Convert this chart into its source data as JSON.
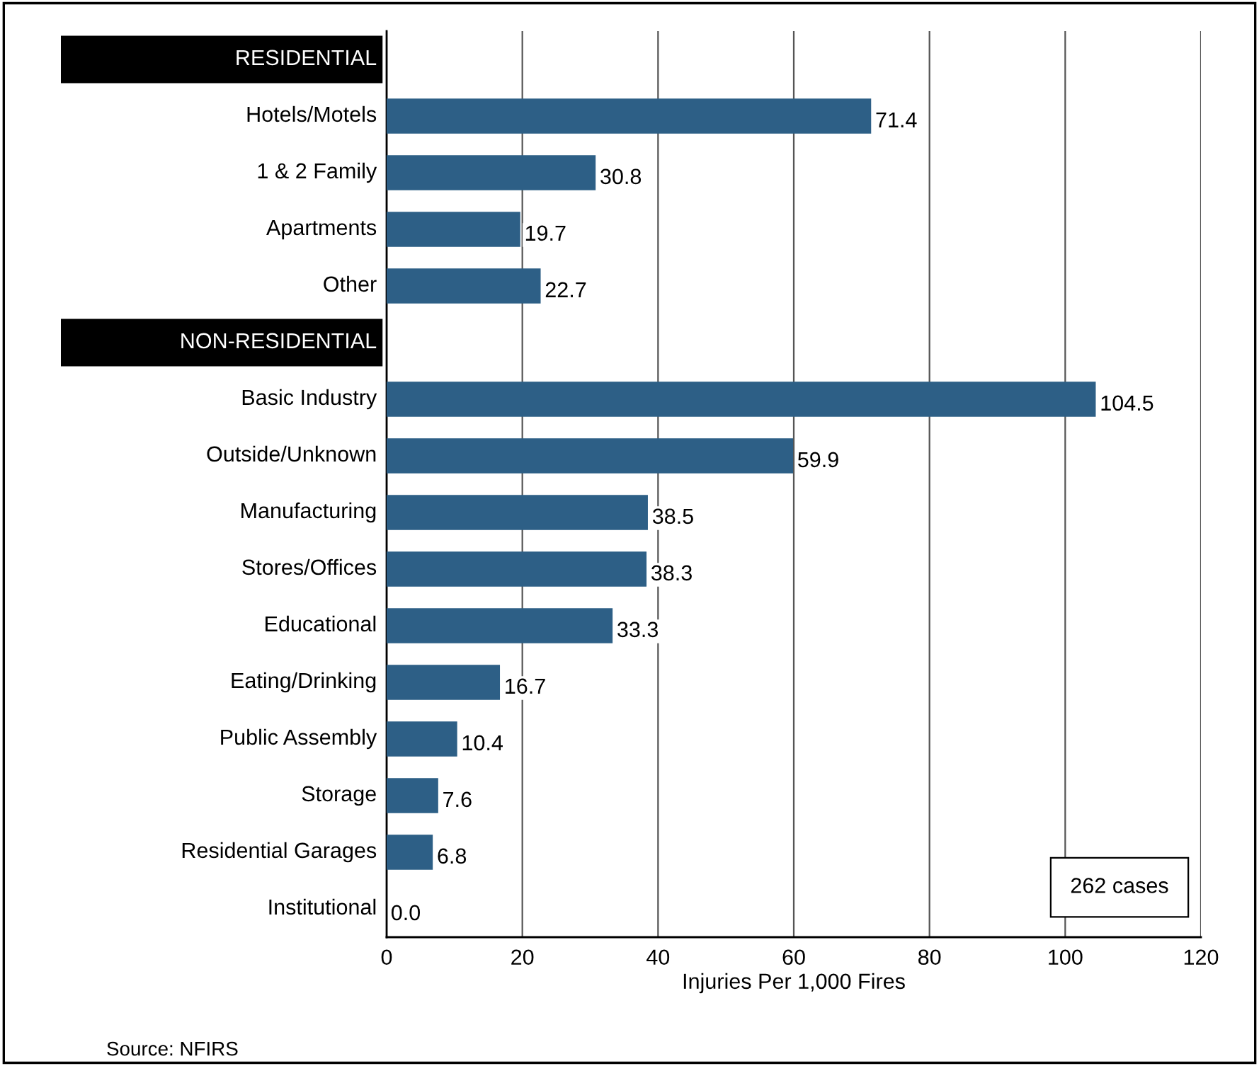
{
  "chart_data": {
    "type": "bar",
    "orientation": "horizontal",
    "categories": [
      "RESIDENTIAL",
      "Hotels/Motels",
      "1 & 2 Family",
      "Apartments",
      "Other",
      "NON-RESIDENTIAL",
      "Basic Industry",
      "Outside/Unknown",
      "Manufacturing",
      "Stores/Offices",
      "Educational",
      "Eating/Drinking",
      "Public Assembly",
      "Storage",
      "Residential Garages",
      "Institutional"
    ],
    "values": [
      null,
      71.4,
      30.8,
      19.7,
      22.7,
      null,
      104.5,
      59.9,
      38.5,
      38.3,
      33.3,
      16.7,
      10.4,
      7.6,
      6.8,
      0.0
    ],
    "color": "#2d5f86",
    "xlabel": "Injuries Per 1,000 Fires",
    "xlim": [
      0,
      120
    ],
    "xticks": [
      0,
      20,
      40,
      60,
      80,
      100,
      120
    ],
    "grid": "x",
    "value_labels": [
      null,
      "71.4",
      "30.8",
      "19.7",
      "22.7",
      null,
      "104.5",
      "59.9",
      "38.5",
      "38.3",
      "33.3",
      "16.7",
      "10.4",
      "7.6",
      "6.8",
      "0.0"
    ],
    "annotations": [
      "262 cases",
      "Source: NFIRS"
    ]
  }
}
